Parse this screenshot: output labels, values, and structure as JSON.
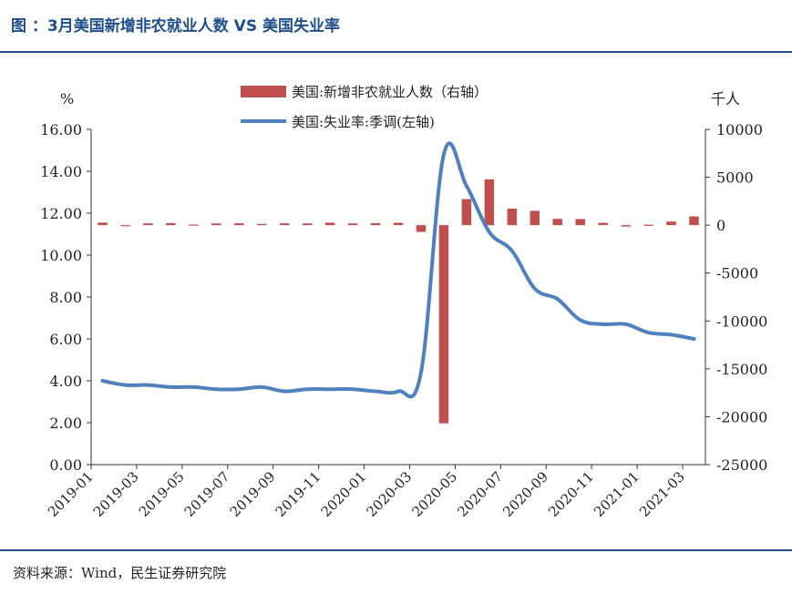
{
  "title": "图 ：3月美国新增非农就业人数 VS 美国失业率",
  "source": "资料来源：Wind，民生证券研究院",
  "colors": {
    "bar": "#c0504d",
    "line": "#4f81bd",
    "header": "#1f4e8c"
  },
  "chart_data": {
    "type": "bar+line",
    "left_unit": "%",
    "right_unit": "千人",
    "left_ylim": [
      0,
      16
    ],
    "left_ticks": [
      "0.00",
      "2.00",
      "4.00",
      "6.00",
      "8.00",
      "10.00",
      "12.00",
      "14.00",
      "16.00"
    ],
    "right_ylim": [
      -25000,
      10000
    ],
    "right_ticks": [
      "10000",
      "5000",
      "0",
      "-5000",
      "-10000",
      "-15000",
      "-20000",
      "-25000"
    ],
    "x_tick_labels": [
      "2019-01",
      "2019-03",
      "2019-05",
      "2019-07",
      "2019-09",
      "2019-11",
      "2020-01",
      "2020-03",
      "2020-05",
      "2020-07",
      "2020-09",
      "2020-11",
      "2021-01",
      "2021-03"
    ],
    "months": [
      "2019-01",
      "2019-02",
      "2019-03",
      "2019-04",
      "2019-05",
      "2019-06",
      "2019-07",
      "2019-08",
      "2019-09",
      "2019-10",
      "2019-11",
      "2019-12",
      "2020-01",
      "2020-02",
      "2020-03",
      "2020-04",
      "2020-05",
      "2020-06",
      "2020-07",
      "2020-08",
      "2020-09",
      "2020-10",
      "2020-11",
      "2020-12",
      "2021-01",
      "2021-02",
      "2021-03"
    ],
    "series": [
      {
        "name": "美国:新增非农就业人数（右轴）",
        "type": "bar",
        "axis": "right",
        "values": [
          269,
          1,
          189,
          216,
          62,
          178,
          194,
          130,
          193,
          185,
          261,
          184,
          214,
          251,
          -701,
          -20687,
          2725,
          4781,
          1726,
          1493,
          661,
          638,
          245,
          -140,
          49,
          379,
          916
        ]
      },
      {
        "name": "美国:失业率:季调(左轴)",
        "type": "line",
        "axis": "left",
        "values": [
          4.0,
          3.8,
          3.8,
          3.7,
          3.7,
          3.6,
          3.6,
          3.7,
          3.5,
          3.6,
          3.6,
          3.6,
          3.5,
          3.5,
          4.4,
          14.8,
          13.3,
          11.1,
          10.2,
          8.4,
          7.9,
          6.9,
          6.7,
          6.7,
          6.3,
          6.2,
          6.0
        ]
      }
    ],
    "legend_position": "top-center",
    "grid": false
  }
}
